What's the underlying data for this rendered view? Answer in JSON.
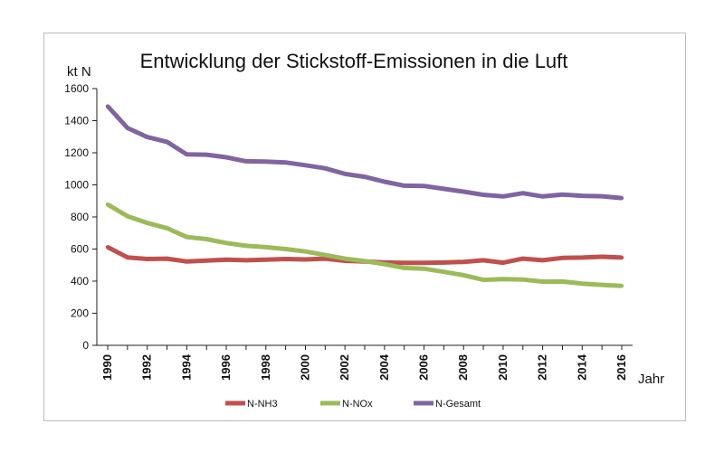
{
  "chart_data": {
    "type": "line",
    "title": "Entwicklung der Stickstoff-Emissionen in die Luft",
    "ylabel": "kt N",
    "xlabel": "Jahr",
    "ylim": [
      0,
      1600
    ],
    "yticks": [
      0,
      200,
      400,
      600,
      800,
      1000,
      1200,
      1400,
      1600
    ],
    "x": [
      1990,
      1991,
      1992,
      1993,
      1994,
      1995,
      1996,
      1997,
      1998,
      1999,
      2000,
      2001,
      2002,
      2003,
      2004,
      2005,
      2006,
      2007,
      2008,
      2009,
      2010,
      2011,
      2012,
      2013,
      2014,
      2015,
      2016
    ],
    "xticks": [
      "1990",
      "1992",
      "1994",
      "1996",
      "1998",
      "2000",
      "2002",
      "2004",
      "2006",
      "2008",
      "2010",
      "2012",
      "2014",
      "2016"
    ],
    "grid": false,
    "legend_position": "bottom",
    "series": [
      {
        "name": "N-NH3",
        "color": "#c0504d",
        "values": [
          612,
          548,
          538,
          540,
          522,
          528,
          534,
          530,
          534,
          538,
          535,
          540,
          527,
          522,
          516,
          514,
          514,
          516,
          520,
          530,
          515,
          540,
          530,
          545,
          547,
          552,
          547
        ]
      },
      {
        "name": "N-NOx",
        "color": "#9bbb59",
        "values": [
          878,
          805,
          763,
          730,
          675,
          662,
          638,
          620,
          612,
          600,
          585,
          563,
          540,
          525,
          506,
          482,
          478,
          458,
          437,
          408,
          413,
          410,
          397,
          398,
          385,
          377,
          370
        ]
      },
      {
        "name": "N-Gesamt",
        "color": "#8064a2",
        "values": [
          1490,
          1355,
          1298,
          1268,
          1190,
          1188,
          1172,
          1147,
          1145,
          1140,
          1122,
          1103,
          1068,
          1050,
          1020,
          995,
          993,
          975,
          958,
          938,
          928,
          948,
          928,
          940,
          932,
          929,
          918
        ]
      }
    ]
  }
}
